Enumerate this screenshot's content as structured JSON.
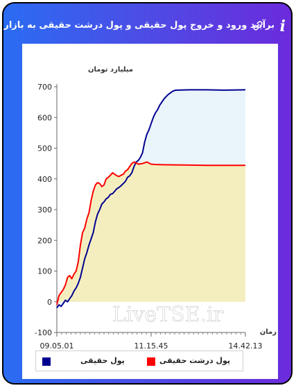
{
  "header": {
    "title": "برآیند ورود و خروج پول حقیقی و پول درشت حقیقی به بازار",
    "info_icon": "i",
    "link_icon_name": "link-icon",
    "background_colors": [
      "#2a6cf3",
      "#6b2bdc"
    ]
  },
  "watermark": "LiveTSE.ir",
  "chart_data": {
    "type": "area",
    "ylabel": "میلیارد تومان",
    "xlabel": "زمان",
    "ylim": [
      -100,
      700
    ],
    "yticks": [
      -100,
      0,
      100,
      200,
      300,
      400,
      500,
      600,
      700
    ],
    "grid": false,
    "legend_position": "bottom",
    "x_ticks": [
      "09.05.01",
      "11.15.45",
      "14.42.13"
    ],
    "series": [
      {
        "name": "پول حقیقی",
        "color": "#000090",
        "fill": "#eaf4fb",
        "points": [
          [
            0,
            -20
          ],
          [
            1,
            -10
          ],
          [
            2,
            -15
          ],
          [
            3,
            -5
          ],
          [
            4,
            5
          ],
          [
            5,
            0
          ],
          [
            6,
            10
          ],
          [
            7,
            20
          ],
          [
            8,
            35
          ],
          [
            9,
            45
          ],
          [
            10,
            60
          ],
          [
            11,
            80
          ],
          [
            12,
            110
          ],
          [
            13,
            140
          ],
          [
            14,
            160
          ],
          [
            15,
            185
          ],
          [
            16,
            205
          ],
          [
            17,
            225
          ],
          [
            18,
            260
          ],
          [
            19,
            285
          ],
          [
            20,
            300
          ],
          [
            21,
            318
          ],
          [
            22,
            325
          ],
          [
            23,
            335
          ],
          [
            24,
            340
          ],
          [
            25,
            350
          ],
          [
            26,
            352
          ],
          [
            27,
            360
          ],
          [
            28,
            368
          ],
          [
            29,
            372
          ],
          [
            30,
            378
          ],
          [
            31,
            385
          ],
          [
            32,
            392
          ],
          [
            33,
            405
          ],
          [
            34,
            410
          ],
          [
            35,
            420
          ],
          [
            36,
            440
          ],
          [
            37,
            455
          ],
          [
            38,
            460
          ],
          [
            39,
            470
          ],
          [
            40,
            485
          ],
          [
            41,
            520
          ],
          [
            42,
            545
          ],
          [
            43,
            560
          ],
          [
            44,
            580
          ],
          [
            45,
            600
          ],
          [
            46,
            615
          ],
          [
            47,
            625
          ],
          [
            48,
            640
          ],
          [
            49,
            650
          ],
          [
            50,
            660
          ],
          [
            51,
            668
          ],
          [
            52,
            675
          ],
          [
            53,
            680
          ],
          [
            54,
            685
          ],
          [
            55,
            688
          ],
          [
            56,
            689
          ],
          [
            62,
            690
          ],
          [
            70,
            690
          ],
          [
            78,
            689
          ],
          [
            88,
            690
          ]
        ]
      },
      {
        "name": "پول درشت حقیقی",
        "color": "#ff0000",
        "fill": "#f4eebf",
        "points": [
          [
            0,
            -10
          ],
          [
            1,
            20
          ],
          [
            2,
            30
          ],
          [
            3,
            40
          ],
          [
            4,
            55
          ],
          [
            5,
            80
          ],
          [
            6,
            85
          ],
          [
            7,
            75
          ],
          [
            8,
            90
          ],
          [
            9,
            100
          ],
          [
            10,
            130
          ],
          [
            11,
            185
          ],
          [
            12,
            225
          ],
          [
            13,
            240
          ],
          [
            14,
            270
          ],
          [
            15,
            290
          ],
          [
            16,
            330
          ],
          [
            17,
            360
          ],
          [
            18,
            380
          ],
          [
            19,
            388
          ],
          [
            20,
            385
          ],
          [
            21,
            375
          ],
          [
            22,
            380
          ],
          [
            23,
            400
          ],
          [
            24,
            405
          ],
          [
            25,
            412
          ],
          [
            26,
            420
          ],
          [
            27,
            415
          ],
          [
            28,
            410
          ],
          [
            29,
            408
          ],
          [
            30,
            412
          ],
          [
            31,
            415
          ],
          [
            32,
            425
          ],
          [
            33,
            430
          ],
          [
            34,
            440
          ],
          [
            35,
            450
          ],
          [
            36,
            455
          ],
          [
            37,
            452
          ],
          [
            38,
            448
          ],
          [
            40,
            450
          ],
          [
            42,
            455
          ],
          [
            44,
            448
          ],
          [
            46,
            447
          ],
          [
            50,
            446
          ],
          [
            60,
            445
          ],
          [
            70,
            444
          ],
          [
            80,
            444
          ],
          [
            88,
            444
          ]
        ]
      }
    ],
    "x_tick_positions": [
      0,
      44,
      88
    ]
  }
}
